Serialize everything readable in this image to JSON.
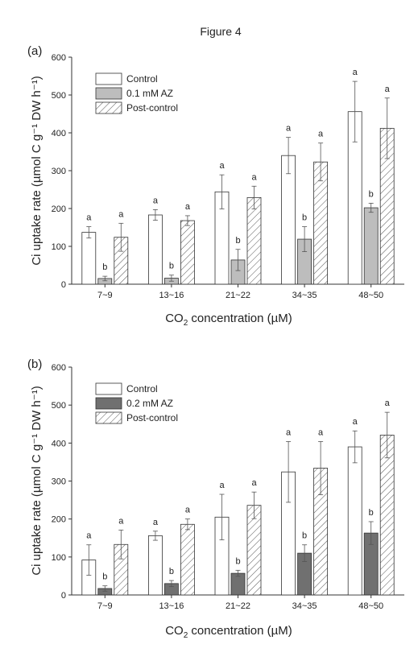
{
  "figure_title": "Figure 4",
  "colors": {
    "control_fill": "#ffffff",
    "az_fill_a": "#bdbdbd",
    "az_fill_b": "#707070",
    "hatch_stroke": "#555555",
    "axis": "#333333"
  },
  "chart_data": [
    {
      "type": "bar",
      "panel_label": "(a)",
      "xlabel_main": "CO",
      "xlabel_sub": "2",
      "xlabel_rest": " concentration (µM)",
      "ylabel": "Ci uptake rate (µmol C g⁻¹ DW h⁻¹)",
      "ylim": [
        0,
        600
      ],
      "yticks": [
        "0",
        "100",
        "200",
        "300",
        "400",
        "500",
        "600"
      ],
      "categories": [
        "7~9",
        "13~16",
        "21~22",
        "34~35",
        "48~50"
      ],
      "legend_position": "top-left",
      "series": [
        {
          "name": "Control",
          "pattern": "white",
          "values": [
            137,
            183,
            244,
            340,
            456
          ],
          "errors": [
            15,
            14,
            45,
            48,
            80
          ],
          "letters": [
            "a",
            "a",
            "a",
            "a",
            "a"
          ]
        },
        {
          "name": "0.1 mM AZ",
          "pattern": "lightgray",
          "values": [
            15,
            16,
            64,
            119,
            202
          ],
          "errors": [
            6,
            8,
            28,
            33,
            12
          ],
          "letters": [
            "b",
            "b",
            "b",
            "b",
            "b"
          ]
        },
        {
          "name": "Post-control",
          "pattern": "hatch",
          "values": [
            124,
            168,
            229,
            323,
            412
          ],
          "errors": [
            37,
            13,
            30,
            50,
            80
          ],
          "letters": [
            "a",
            "a",
            "a",
            "a",
            "a"
          ]
        }
      ]
    },
    {
      "type": "bar",
      "panel_label": "(b)",
      "xlabel_main": "CO",
      "xlabel_sub": "2",
      "xlabel_rest": " concentration (µM)",
      "ylabel": "Ci uptake rate (µmol C g⁻¹ DW h⁻¹)",
      "ylim": [
        0,
        600
      ],
      "yticks": [
        "0",
        "100",
        "200",
        "300",
        "400",
        "500",
        "600"
      ],
      "categories": [
        "7~9",
        "13~16",
        "21~22",
        "34~35",
        "48~50"
      ],
      "legend_position": "top-left",
      "series": [
        {
          "name": "Control",
          "pattern": "white",
          "values": [
            92,
            156,
            205,
            324,
            390
          ],
          "errors": [
            40,
            12,
            60,
            80,
            42
          ],
          "letters": [
            "a",
            "a",
            "a",
            "a",
            "a"
          ]
        },
        {
          "name": "0.2 mM AZ",
          "pattern": "darkgray",
          "values": [
            17,
            30,
            57,
            110,
            163
          ],
          "errors": [
            7,
            8,
            8,
            22,
            30
          ],
          "letters": [
            "b",
            "b",
            "b",
            "b",
            "b"
          ]
        },
        {
          "name": "Post-control",
          "pattern": "hatch",
          "values": [
            133,
            186,
            236,
            334,
            421
          ],
          "errors": [
            38,
            14,
            35,
            70,
            60
          ],
          "letters": [
            "a",
            "a",
            "a",
            "a",
            "a"
          ]
        }
      ]
    }
  ]
}
